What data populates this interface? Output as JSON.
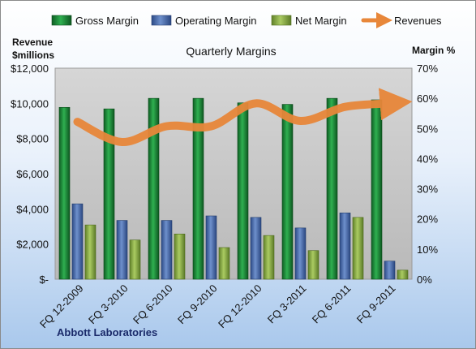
{
  "chart_data": {
    "type": "bar",
    "title": "Quarterly Margins",
    "footer": "Abbott Laboratories",
    "categories": [
      "FQ 12-2009",
      "FQ 3-2010",
      "FQ 6-2010",
      "FQ 9-2010",
      "FQ 12-2010",
      "FQ 3-2011",
      "FQ 6-2011",
      "FQ 9-2011"
    ],
    "y_left": {
      "label_line1": "Revenue",
      "label_line2": "$millions",
      "range": [
        0,
        12000
      ],
      "tick_labels": [
        "$-",
        "$2,000",
        "$4,000",
        "$6,000",
        "$8,000",
        "$10,000",
        "$12,000"
      ]
    },
    "y_right": {
      "label": "Margin %",
      "range": [
        0,
        70
      ],
      "tick_labels": [
        "0%",
        "10%",
        "20%",
        "30%",
        "40%",
        "50%",
        "60%",
        "70%"
      ]
    },
    "series": [
      {
        "name": "Gross Margin",
        "axis": "right",
        "type": "bar",
        "color": "#1e8a3c",
        "values": [
          57,
          56.5,
          60,
          60,
          58.5,
          58,
          60,
          59.5
        ]
      },
      {
        "name": "Operating Margin",
        "axis": "right",
        "type": "bar",
        "color": "#4a6fb0",
        "values": [
          25,
          19.5,
          19.5,
          21,
          20.5,
          17,
          22,
          6
        ]
      },
      {
        "name": "Net Margin",
        "axis": "right",
        "type": "bar",
        "color": "#8fb04a",
        "values": [
          18,
          13,
          15,
          10.5,
          14.5,
          9.5,
          20.5,
          3
        ]
      },
      {
        "name": "Revenues",
        "axis": "left",
        "type": "line",
        "color": "#e8873a",
        "values": [
          8950,
          7800,
          8700,
          8700,
          10000,
          9000,
          9800,
          10000
        ]
      }
    ],
    "grid": false,
    "legend_position": "top"
  }
}
